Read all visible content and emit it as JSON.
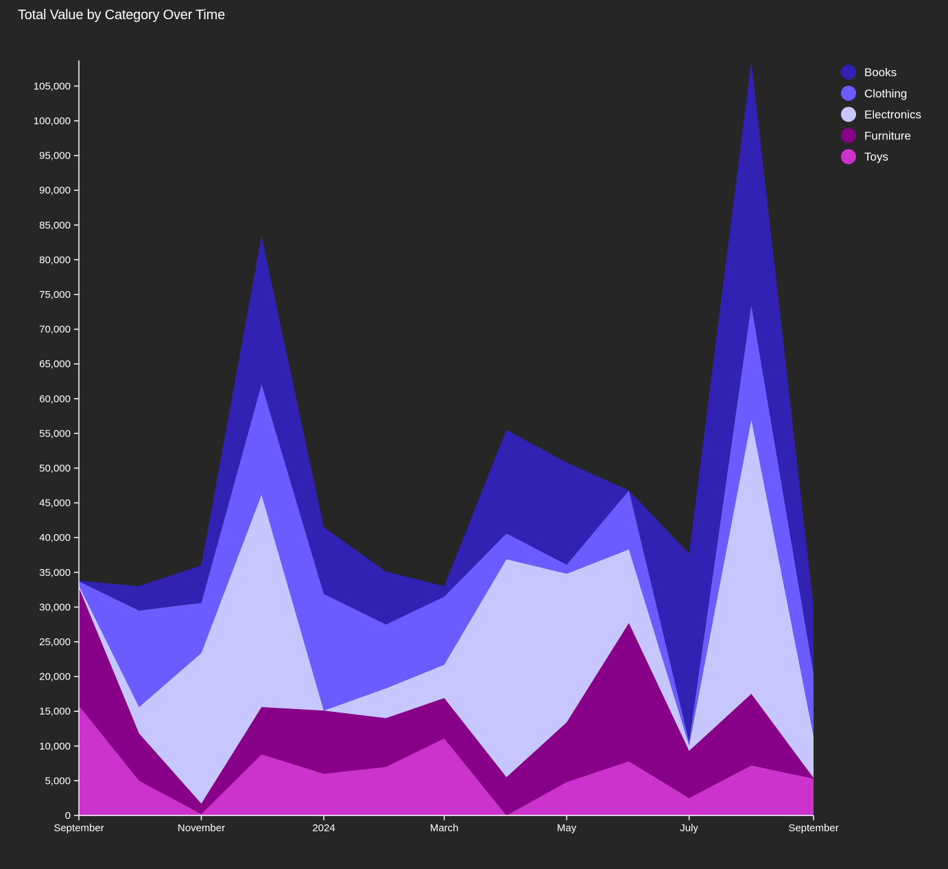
{
  "chart_data": {
    "type": "area",
    "stacked": true,
    "title": "Total Value by Category Over Time",
    "xlabel": "",
    "ylabel": "",
    "x": [
      "2023-09-01",
      "2023-10-01",
      "2023-11-01",
      "2023-12-01",
      "2024-01-01",
      "2024-02-01",
      "2024-03-01",
      "2024-04-01",
      "2024-05-01",
      "2024-06-01",
      "2024-07-01",
      "2024-08-01",
      "2024-09-01"
    ],
    "x_ticks": [
      {
        "label": "September",
        "date": "2023-09-01"
      },
      {
        "label": "November",
        "date": "2023-11-01"
      },
      {
        "label": "2024",
        "date": "2024-01-01"
      },
      {
        "label": "March",
        "date": "2024-03-01"
      },
      {
        "label": "May",
        "date": "2024-05-01"
      },
      {
        "label": "July",
        "date": "2024-07-01"
      },
      {
        "label": "September",
        "date": "2024-09-01"
      }
    ],
    "ylim": [
      0,
      108000
    ],
    "y_ticks": [
      "0",
      "5,000",
      "10,000",
      "15,000",
      "20,000",
      "25,000",
      "30,000",
      "35,000",
      "40,000",
      "45,000",
      "50,000",
      "55,000",
      "60,000",
      "65,000",
      "70,000",
      "75,000",
      "80,000",
      "85,000",
      "90,000",
      "95,000",
      "100,000",
      "105,000"
    ],
    "grid": false,
    "legend_position": "top-right",
    "series": [
      {
        "name": "Toys",
        "color": "#cc33cc",
        "values": [
          15800,
          5000,
          200,
          8800,
          6000,
          7000,
          11100,
          0,
          4800,
          7800,
          2500,
          7200,
          5300
        ]
      },
      {
        "name": "Furniture",
        "color": "#880088",
        "values": [
          17000,
          6800,
          1500,
          6800,
          9100,
          7000,
          5800,
          5500,
          8600,
          19900,
          6800,
          10300,
          100
        ]
      },
      {
        "name": "Electronics",
        "color": "#c8c6ff",
        "values": [
          300,
          3800,
          21700,
          30600,
          0,
          4300,
          4800,
          31400,
          21400,
          10600,
          800,
          39500,
          6000
        ]
      },
      {
        "name": "Clothing",
        "color": "#6b5cff",
        "values": [
          600,
          13900,
          7200,
          15900,
          16800,
          9200,
          9800,
          3700,
          1300,
          8500,
          500,
          16500,
          9000
        ]
      },
      {
        "name": "Books",
        "color": "#3222b4",
        "values": [
          100,
          3500,
          5400,
          21300,
          9600,
          7600,
          1500,
          14900,
          14700,
          0,
          27100,
          35000,
          9600
        ]
      }
    ]
  }
}
